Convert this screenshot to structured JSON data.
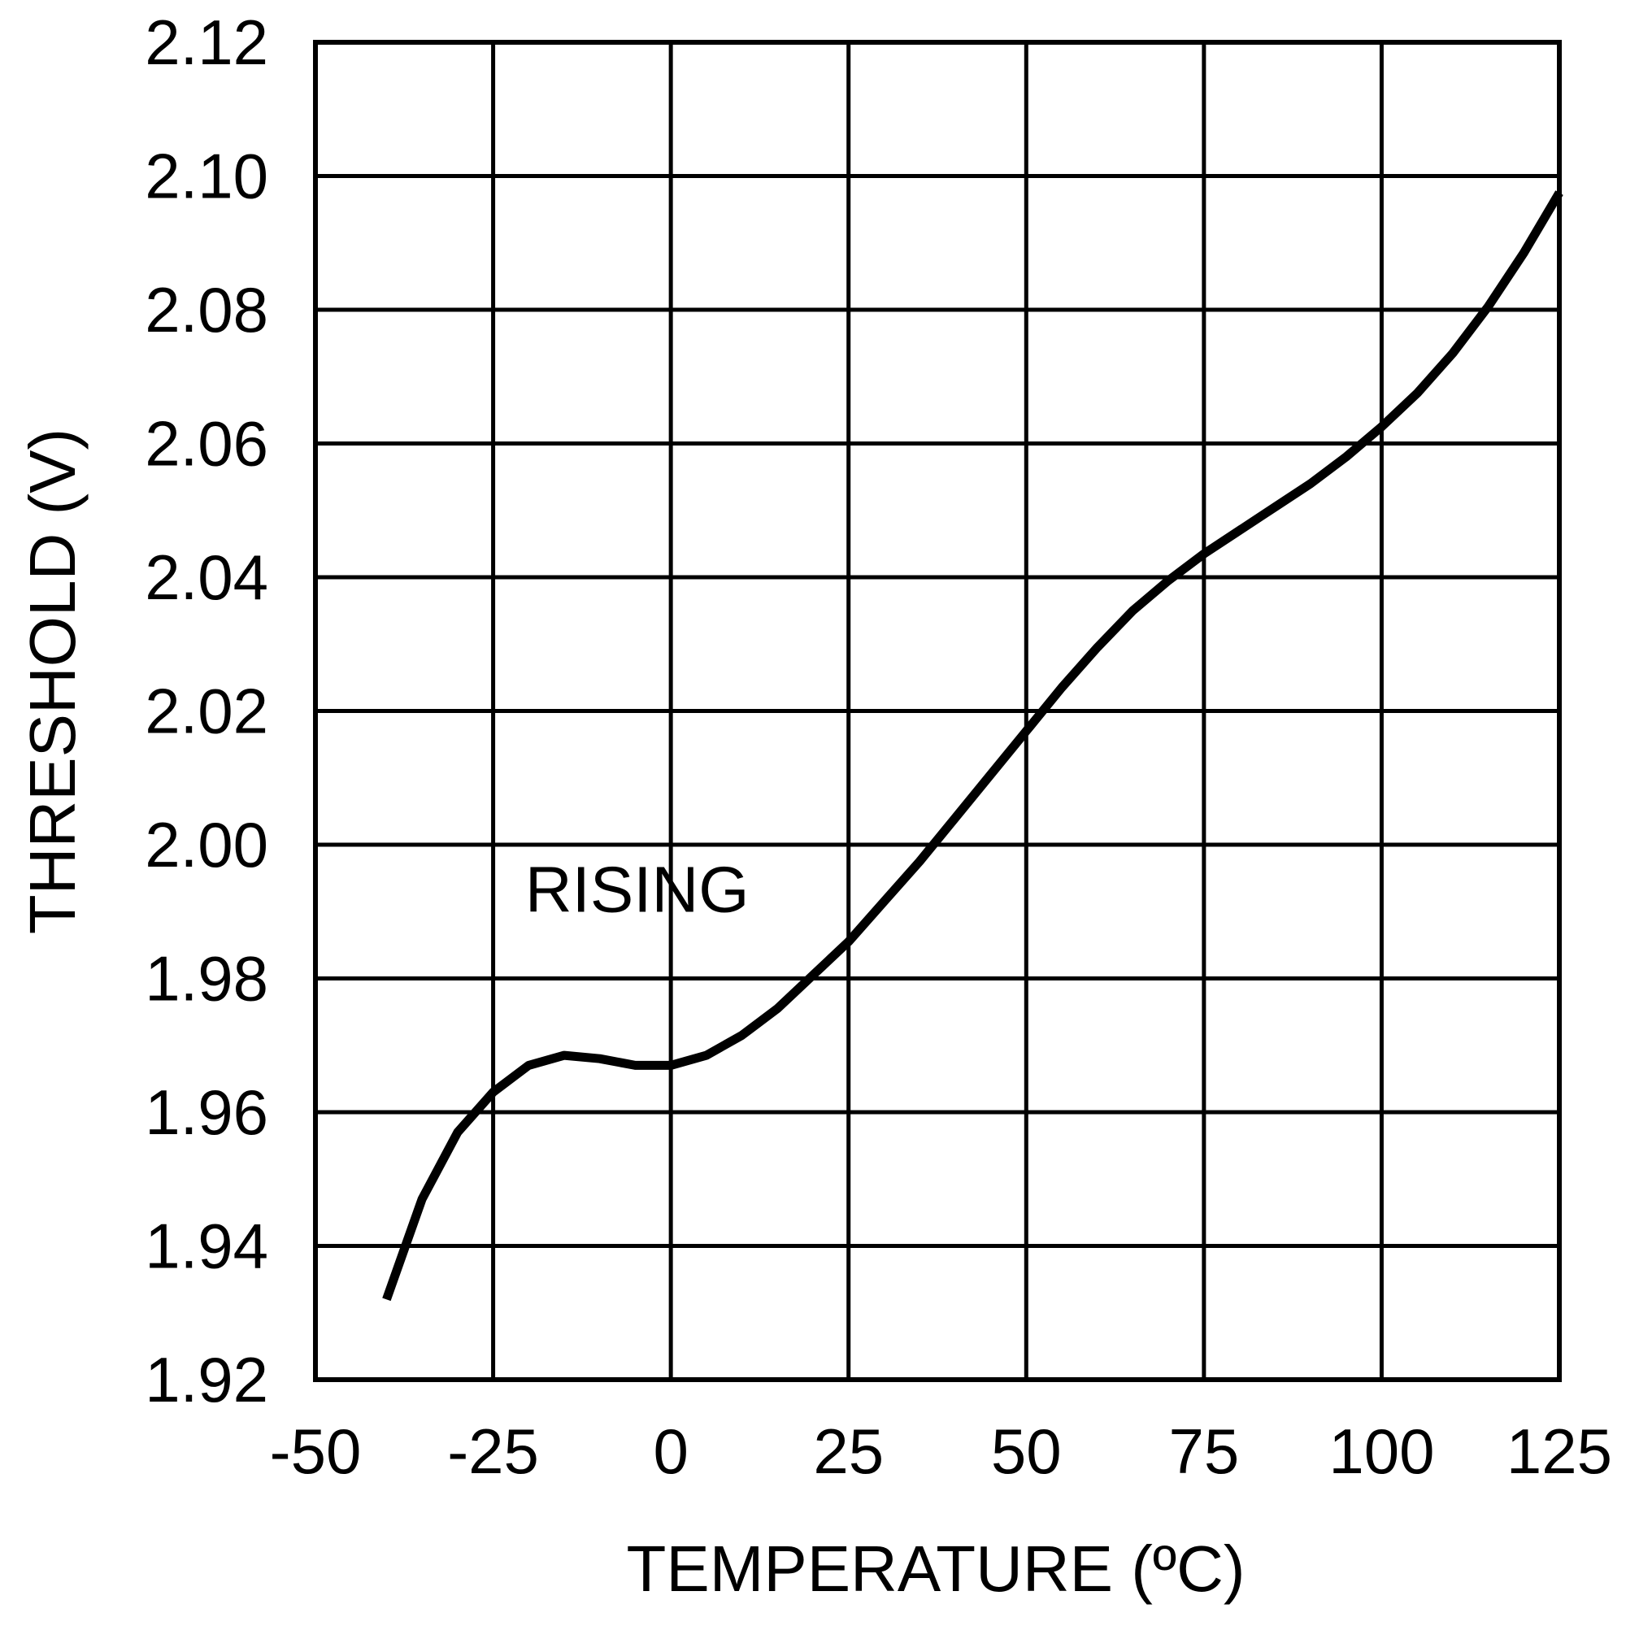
{
  "chart_data": {
    "type": "line",
    "title": "",
    "xlabel": "TEMPERATURE (ºC)",
    "ylabel": "THRESHOLD (V)",
    "xlim": [
      -50,
      125
    ],
    "ylim": [
      1.92,
      2.12
    ],
    "x_ticks": [
      "-50",
      "-25",
      "0",
      "25",
      "50",
      "75",
      "100",
      "125"
    ],
    "y_ticks": [
      "1.92",
      "1.94",
      "1.96",
      "1.98",
      "2.00",
      "2.02",
      "2.04",
      "2.06",
      "2.08",
      "2.10",
      "2.12"
    ],
    "grid": true,
    "annotation": {
      "text": "RISING",
      "x": -20.5,
      "y": 1.99
    },
    "series": [
      {
        "name": "RISING",
        "color": "#000000",
        "x": [
          -40,
          -35,
          -30,
          -25,
          -20,
          -15,
          -10,
          -5,
          0,
          5,
          10,
          15,
          20,
          25,
          30,
          35,
          40,
          45,
          50,
          55,
          60,
          65,
          70,
          75,
          80,
          85,
          90,
          95,
          100,
          105,
          110,
          115,
          120,
          125
        ],
        "y": [
          1.932,
          1.947,
          1.957,
          1.963,
          1.967,
          1.9685,
          1.968,
          1.967,
          1.967,
          1.9685,
          1.9715,
          1.9755,
          1.9805,
          1.9855,
          1.9915,
          1.9975,
          2.004,
          2.0105,
          2.017,
          2.0235,
          2.0295,
          2.035,
          2.0395,
          2.0435,
          2.047,
          2.0505,
          2.054,
          2.058,
          2.0625,
          2.0675,
          2.0735,
          2.0805,
          2.0885,
          2.0975
        ]
      }
    ]
  }
}
